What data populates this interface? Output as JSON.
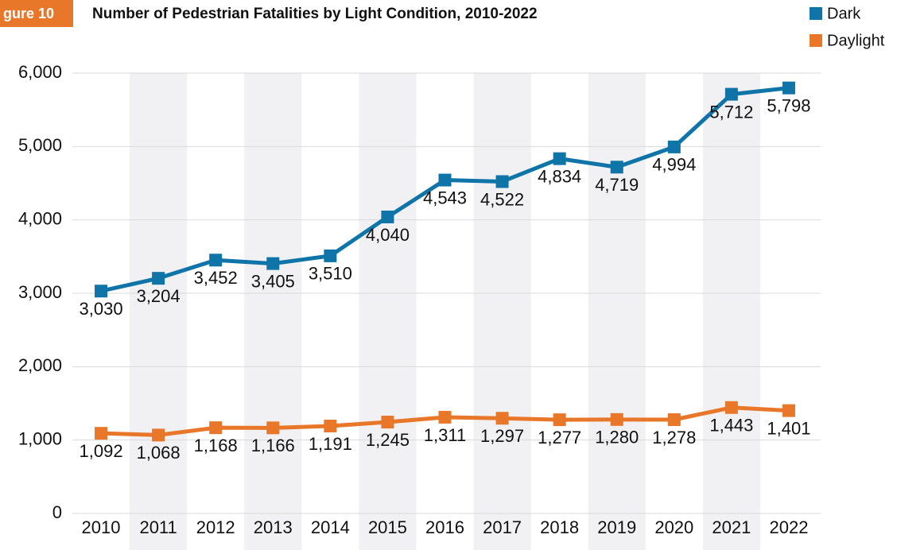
{
  "chart_data": {
    "type": "line",
    "badge": "gure 10",
    "title": "Number of Pedestrian Fatalities by Light Condition, 2010-2022",
    "categories": [
      "2010",
      "2011",
      "2012",
      "2013",
      "2014",
      "2015",
      "2016",
      "2017",
      "2018",
      "2019",
      "2020",
      "2021",
      "2022"
    ],
    "series": [
      {
        "name": "Dark",
        "color": "#0f74a7",
        "values": [
          3030,
          3204,
          3452,
          3405,
          3510,
          4040,
          4543,
          4522,
          4834,
          4719,
          4994,
          5712,
          5798
        ],
        "value_labels": [
          "3,030",
          "3,204",
          "3,452",
          "3,405",
          "3,510",
          "4,040",
          "4,543",
          "4,522",
          "4,834",
          "4,719",
          "4,994",
          "5,712",
          "5,798"
        ]
      },
      {
        "name": "Daylight",
        "color": "#e8772a",
        "values": [
          1092,
          1068,
          1168,
          1166,
          1191,
          1245,
          1311,
          1297,
          1277,
          1280,
          1278,
          1443,
          1401
        ],
        "value_labels": [
          "1,092",
          "1,068",
          "1,168",
          "1,166",
          "1,191",
          "1,245",
          "1,311",
          "1,297",
          "1,277",
          "1,280",
          "1,278",
          "1,443",
          "1,401"
        ]
      }
    ],
    "ylim": [
      0,
      6000
    ],
    "yticks": [
      0,
      {
        "value": 1000,
        "label": "1,000"
      },
      {
        "value": 2000,
        "label": "2,000"
      },
      {
        "value": 3000,
        "label": "3,000"
      },
      {
        "value": 4000,
        "label": "4,000"
      },
      {
        "value": 5000,
        "label": "5,000"
      },
      {
        "value": 6000,
        "label": "6,000"
      }
    ],
    "grid": true,
    "legend": "top-right"
  }
}
